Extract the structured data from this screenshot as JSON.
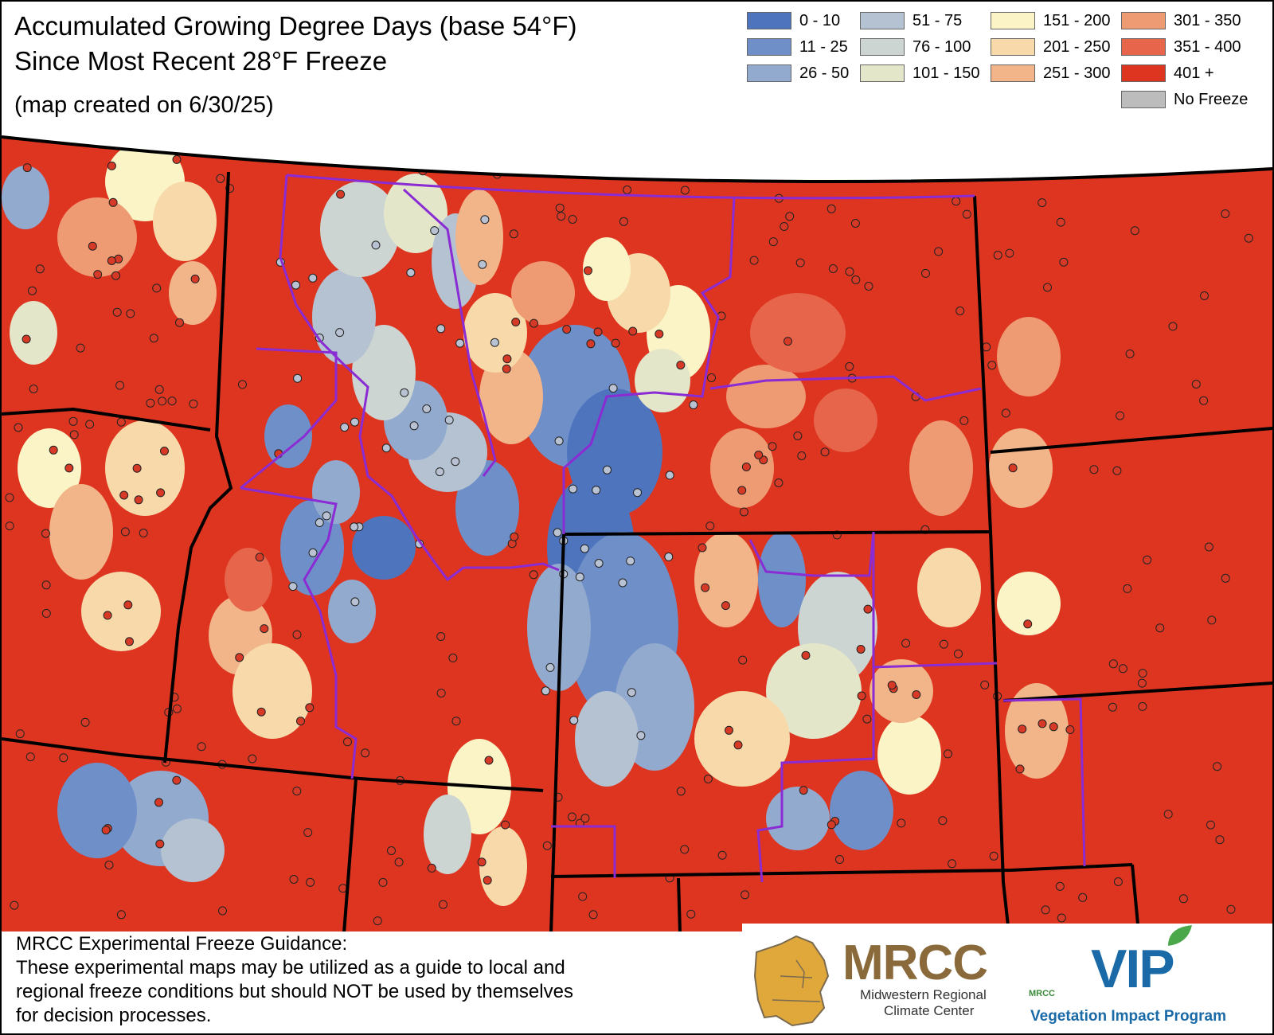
{
  "title_line1": "Accumulated Growing Degree Days (base 54°F)",
  "title_line2": "Since Most Recent 28°F Freeze",
  "subtitle": "(map created on 6/30/25)",
  "legend": [
    {
      "label": "0 - 10",
      "color": "#4e74bd"
    },
    {
      "label": "11 - 25",
      "color": "#6f8fc8"
    },
    {
      "label": "26 - 50",
      "color": "#93aacf"
    },
    {
      "label": "51 - 75",
      "color": "#b4c2d2"
    },
    {
      "label": "76 - 100",
      "color": "#cdd5d2"
    },
    {
      "label": "101 - 150",
      "color": "#e3e6c9"
    },
    {
      "label": "151 - 200",
      "color": "#faf4c6"
    },
    {
      "label": "201 - 250",
      "color": "#f7d9aa"
    },
    {
      "label": "251 - 300",
      "color": "#f2b489"
    },
    {
      "label": "301 - 350",
      "color": "#ee9a73"
    },
    {
      "label": "351 - 400",
      "color": "#e7654a"
    },
    {
      "label": "401 +",
      "color": "#dd3520"
    },
    {
      "label": "No Freeze",
      "color": "#bcbcbc"
    }
  ],
  "notice": {
    "line1": "MRCC Experimental Freeze Guidance:",
    "line2": "These experimental maps may be utilized as a guide to local and",
    "line3": "regional freeze conditions but should NOT be used by themselves",
    "line4": "for decision processes."
  },
  "logos": {
    "mrcc": "MRCC",
    "mrcc_full_1": "Midwestern Regional",
    "mrcc_full_2": "Climate Center",
    "vip": "VIP",
    "vip_small": "MRCC",
    "vip_full": "Vegetation Impact Program"
  }
}
